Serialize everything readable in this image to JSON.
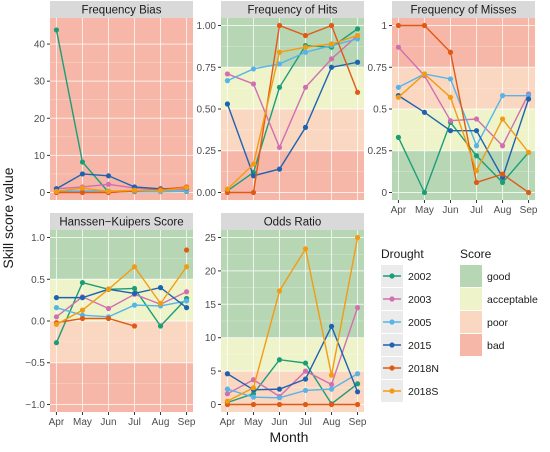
{
  "ylabel": "Skill score value",
  "xlabel": "Month",
  "colors": {
    "grid": "#ffffff",
    "strip": "#d9d9d9",
    "panel_bg": "#ebebeb"
  },
  "legend": {
    "drought_title": "Drought",
    "score_title": "Score",
    "droughts": [
      {
        "name": "2002",
        "color": "#1b9e77"
      },
      {
        "name": "2003",
        "color": "#d16fb0"
      },
      {
        "name": "2005",
        "color": "#56b4e9"
      },
      {
        "name": "2015",
        "color": "#1f63b0"
      },
      {
        "name": "2018N",
        "color": "#e05a16"
      },
      {
        "name": "2018S",
        "color": "#f39c12"
      }
    ],
    "scores": [
      {
        "name": "good",
        "color": "#b7d6b4"
      },
      {
        "name": "acceptable",
        "color": "#eef3c9"
      },
      {
        "name": "poor",
        "color": "#f9d7c0"
      },
      {
        "name": "bad",
        "color": "#f6b7a8"
      }
    ]
  },
  "chart_data": [
    {
      "type": "line",
      "title": "Frequency Bias",
      "categories": [
        "Apr",
        "May",
        "Jun",
        "Jul",
        "Aug",
        "Sep"
      ],
      "ylim": [
        0,
        45
      ],
      "yticks": [
        0,
        10,
        20,
        30,
        40
      ],
      "bands": [
        {
          "from": 0,
          "to": 45,
          "score": "bad"
        }
      ],
      "series": [
        {
          "name": "2002",
          "values": [
            43.8,
            8.2,
            0.1,
            0.3,
            0.3,
            0.3
          ]
        },
        {
          "name": "2003",
          "values": [
            1.0,
            1.5,
            2.2,
            1.2,
            0.8,
            0.8
          ]
        },
        {
          "name": "2005",
          "values": [
            0.3,
            0.4,
            0.4,
            0.2,
            0.2,
            0.4
          ]
        },
        {
          "name": "2015",
          "values": [
            1.0,
            5.0,
            4.5,
            1.5,
            1.0,
            1.2
          ]
        },
        {
          "name": "2018N",
          "values": [
            0.0,
            0.0,
            0.0,
            0.4,
            0.8,
            1.5
          ]
        },
        {
          "name": "2018S",
          "values": [
            0.3,
            1.2,
            0.3,
            0.6,
            0.5,
            1.3
          ]
        }
      ]
    },
    {
      "type": "line",
      "title": "Frequency of Hits",
      "categories": [
        "Apr",
        "May",
        "Jun",
        "Jul",
        "Aug",
        "Sep"
      ],
      "ylim": [
        0,
        1
      ],
      "yticks": [
        0,
        0.25,
        0.5,
        0.75,
        1.0
      ],
      "yticklabels": [
        "0.00",
        "0.25",
        "0.50",
        "0.75",
        "1.00"
      ],
      "bands": [
        {
          "from": 0.75,
          "to": 1.0,
          "score": "good"
        },
        {
          "from": 0.5,
          "to": 0.75,
          "score": "acceptable"
        },
        {
          "from": 0.25,
          "to": 0.5,
          "score": "poor"
        },
        {
          "from": 0.0,
          "to": 0.25,
          "score": "bad"
        }
      ],
      "series": [
        {
          "name": "2002",
          "values": [
            0.01,
            0.12,
            0.63,
            0.88,
            0.87,
            0.98
          ]
        },
        {
          "name": "2003",
          "values": [
            0.71,
            0.65,
            0.27,
            0.63,
            0.8,
            0.94
          ]
        },
        {
          "name": "2005",
          "values": [
            0.67,
            0.74,
            0.77,
            0.84,
            0.88,
            0.92
          ]
        },
        {
          "name": "2015",
          "values": [
            0.53,
            0.1,
            0.14,
            0.39,
            0.75,
            0.78
          ]
        },
        {
          "name": "2018N",
          "values": [
            0.0,
            0.0,
            1.0,
            0.94,
            1.0,
            0.6
          ]
        },
        {
          "name": "2018S",
          "values": [
            0.02,
            0.17,
            0.84,
            0.87,
            0.89,
            0.94
          ]
        }
      ]
    },
    {
      "type": "line",
      "title": "Frequency of Misses",
      "categories": [
        "Apr",
        "May",
        "Jun",
        "Jul",
        "Aug",
        "Sep"
      ],
      "ylim": [
        0,
        1
      ],
      "yticks": [
        0,
        0.25,
        0.5,
        0.75,
        1.0
      ],
      "bands": [
        {
          "from": 0.75,
          "to": 1.0,
          "score": "bad"
        },
        {
          "from": 0.5,
          "to": 0.75,
          "score": "poor"
        },
        {
          "from": 0.25,
          "to": 0.5,
          "score": "acceptable"
        },
        {
          "from": 0.0,
          "to": 0.25,
          "score": "good"
        }
      ],
      "series": [
        {
          "name": "2002",
          "values": [
            0.33,
            0.0,
            0.42,
            0.22,
            0.06,
            0.24
          ]
        },
        {
          "name": "2003",
          "values": [
            0.87,
            0.7,
            0.43,
            0.44,
            0.28,
            0.59
          ]
        },
        {
          "name": "2005",
          "values": [
            0.63,
            0.71,
            0.68,
            0.28,
            0.58,
            0.58
          ]
        },
        {
          "name": "2015",
          "values": [
            0.58,
            0.48,
            0.37,
            0.37,
            0.09,
            0.56
          ]
        },
        {
          "name": "2018N",
          "values": [
            1.0,
            1.0,
            0.84,
            0.06,
            0.11,
            0.0
          ]
        },
        {
          "name": "2018S",
          "values": [
            0.57,
            0.71,
            0.57,
            0.13,
            0.44,
            0.24
          ]
        }
      ]
    },
    {
      "type": "line",
      "title": "Hanssen−Kuipers Score",
      "categories": [
        "Apr",
        "May",
        "Jun",
        "Jul",
        "Aug",
        "Sep"
      ],
      "ylim": [
        -1,
        1
      ],
      "yticks": [
        -1.0,
        -0.5,
        0.0,
        0.5,
        1.0
      ],
      "yticklabels": [
        "−1.0",
        "−0.5",
        "0.0",
        "0.5",
        "1.0"
      ],
      "bands": [
        {
          "from": 0.5,
          "to": 1.0,
          "score": "good"
        },
        {
          "from": 0.0,
          "to": 0.5,
          "score": "acceptable"
        },
        {
          "from": -0.5,
          "to": 0.0,
          "score": "poor"
        },
        {
          "from": -1.0,
          "to": -0.5,
          "score": "bad"
        }
      ],
      "series": [
        {
          "name": "2002",
          "values": [
            -0.26,
            0.46,
            0.38,
            0.39,
            -0.06,
            0.27
          ]
        },
        {
          "name": "2003",
          "values": [
            0.05,
            0.29,
            0.15,
            0.32,
            0.2,
            0.35
          ]
        },
        {
          "name": "2005",
          "values": [
            0.16,
            0.07,
            0.05,
            0.19,
            0.18,
            0.24
          ]
        },
        {
          "name": "2015",
          "values": [
            0.28,
            0.28,
            0.38,
            0.33,
            0.4,
            0.16
          ]
        },
        {
          "name": "2018N",
          "values": [
            -0.02,
            0.03,
            0.03,
            -0.06,
            null,
            0.85
          ]
        },
        {
          "name": "2018S",
          "values": [
            -0.04,
            0.13,
            0.38,
            0.65,
            0.21,
            0.65
          ]
        }
      ]
    },
    {
      "type": "line",
      "title": "Odds Ratio",
      "categories": [
        "Apr",
        "May",
        "Jun",
        "Jul",
        "Aug",
        "Sep"
      ],
      "ylim": [
        0,
        25
      ],
      "yticks": [
        0,
        5,
        10,
        15,
        20,
        25
      ],
      "bands": [
        {
          "from": 10,
          "to": 25,
          "score": "good"
        },
        {
          "from": 5,
          "to": 10,
          "score": "acceptable"
        },
        {
          "from": 0,
          "to": 5,
          "score": "poor"
        }
      ],
      "series": [
        {
          "name": "2002",
          "values": [
            0.3,
            1.6,
            6.7,
            6.2,
            0.1,
            3.1
          ]
        },
        {
          "name": "2003",
          "values": [
            1.6,
            3.7,
            1.2,
            5.0,
            3.0,
            14.5
          ]
        },
        {
          "name": "2005",
          "values": [
            2.3,
            1.1,
            1.0,
            2.1,
            2.3,
            4.6
          ]
        },
        {
          "name": "2015",
          "values": [
            4.6,
            2.2,
            2.3,
            3.8,
            11.7,
            1.9
          ]
        },
        {
          "name": "2018N",
          "values": [
            0.0,
            0.0,
            0.0,
            0.0,
            0.0,
            0.0
          ]
        },
        {
          "name": "2018S",
          "values": [
            0.5,
            2.5,
            17.0,
            23.3,
            4.4,
            25.0
          ]
        }
      ]
    }
  ]
}
